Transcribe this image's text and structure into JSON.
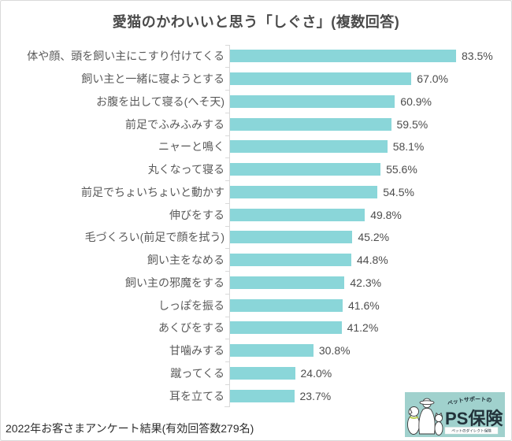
{
  "title": "愛猫のかわいいと思う「しぐさ」(複数回答)",
  "footer": {
    "note": "2022年お客さまアンケート結果(有効回答数279名)"
  },
  "logo": {
    "tagline_top": "ペットサポートの",
    "brand": "PS保険",
    "tagline_bottom": "ペットのダイレクト保険",
    "background": "#a0d1cd",
    "text_color": "#22323a"
  },
  "colors": {
    "bar": "#8ad6d9",
    "axis": "#d9d9d9",
    "label_text": "#595959",
    "value_text": "#4d4d4d"
  },
  "chart_data": {
    "type": "bar",
    "orientation": "horizontal",
    "title": "愛猫のかわいいと思う「しぐさ」(複数回答)",
    "categories": [
      "体や顔、頭を飼い主にこすり付けてくる",
      "飼い主と一緒に寝ようとする",
      "お腹を出して寝る(へそ天)",
      "前足でふみふみする",
      "ニャーと鳴く",
      "丸くなって寝る",
      "前足でちょいちょいと動かす",
      "伸びをする",
      "毛づくろい(前足で顔を拭う)",
      "飼い主をなめる",
      "飼い主の邪魔をする",
      "しっぽを振る",
      "あくびをする",
      "甘噛みする",
      "蹴ってくる",
      "耳を立てる"
    ],
    "values": [
      83.5,
      67.0,
      60.9,
      59.5,
      58.1,
      55.6,
      54.5,
      49.8,
      45.2,
      44.8,
      42.3,
      41.6,
      41.2,
      30.8,
      24.0,
      23.7
    ],
    "value_labels": [
      "83.5%",
      "67.0%",
      "60.9%",
      "59.5%",
      "58.1%",
      "55.6%",
      "54.5%",
      "49.8%",
      "45.2%",
      "44.8%",
      "42.3%",
      "41.6%",
      "41.2%",
      "30.8%",
      "24.0%",
      "23.7%"
    ],
    "unit": "%",
    "xlim": [
      0,
      100
    ],
    "grid": false,
    "legend": false,
    "sort": "descending",
    "bar_color": "#8ad6d9"
  }
}
